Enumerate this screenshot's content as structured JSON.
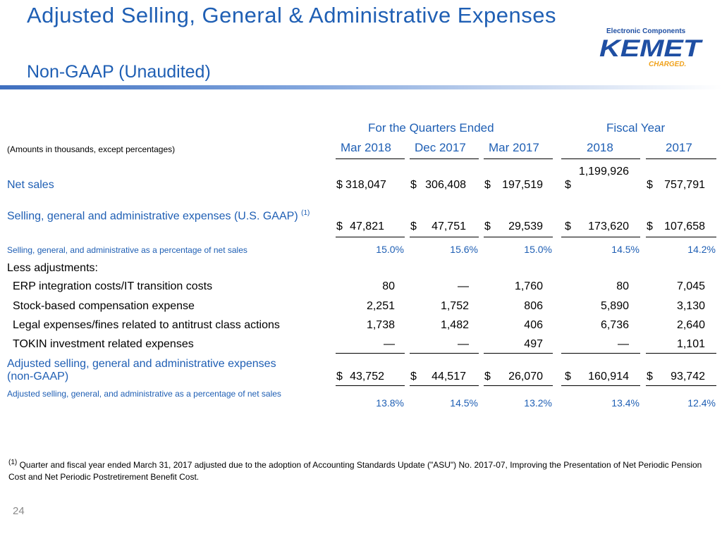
{
  "title": "Adjusted Selling, General & Administrative Expenses",
  "subtitle": "Non-GAAP (Unaudited)",
  "logo": {
    "tagline": "Electronic Components",
    "brand": "KEMET",
    "charged": "CHARGED.",
    "primary_color": "#1f4fa3",
    "accent_color": "#f0a21c"
  },
  "table": {
    "units_note": "(Amounts in thousands, except percentages)",
    "group_quarters": "For the Quarters Ended",
    "group_fiscal": "Fiscal Year",
    "columns": [
      "Mar 2018",
      "Dec 2017",
      "Mar 2017",
      "2018",
      "2017"
    ],
    "rows": {
      "net_sales": {
        "label": "Net sales",
        "cur": "$",
        "values": [
          "318,047",
          "306,408",
          "197,519",
          "1,199,926",
          "757,791"
        ]
      },
      "sga_gaap": {
        "label": "Selling, general and administrative expenses (U.S. GAAP)",
        "sup": "(1)",
        "cur": "$",
        "values": [
          "47,821",
          "47,751",
          "29,539",
          "173,620",
          "107,658"
        ]
      },
      "sga_pct": {
        "label": "Selling, general, and administrative as a percentage of net sales",
        "values": [
          "15.0%",
          "15.6%",
          "15.0%",
          "14.5%",
          "14.2%"
        ]
      },
      "less_adjustments": {
        "label": "Less adjustments:"
      },
      "erp": {
        "label": "ERP integration costs/IT transition costs",
        "values": [
          "80",
          "—",
          "1,760",
          "80",
          "7,045"
        ]
      },
      "stock": {
        "label": "Stock-based compensation expense",
        "values": [
          "2,251",
          "1,752",
          "806",
          "5,890",
          "3,130"
        ]
      },
      "legal": {
        "label": "Legal expenses/fines related to antitrust class actions",
        "values": [
          "1,738",
          "1,482",
          "406",
          "6,736",
          "2,640"
        ]
      },
      "tokin": {
        "label": "TOKIN investment related expenses",
        "values": [
          "—",
          "—",
          "497",
          "—",
          "1,101"
        ]
      },
      "adj_sga": {
        "label": "Adjusted selling, general and administrative expenses (non-GAAP)",
        "cur": "$",
        "values": [
          "43,752",
          "44,517",
          "26,070",
          "160,914",
          "93,742"
        ]
      },
      "adj_pct": {
        "label": "Adjusted selling, general, and administrative as a percentage of net sales",
        "values": [
          "13.8%",
          "14.5%",
          "13.2%",
          "13.4%",
          "12.4%"
        ]
      }
    }
  },
  "footnote": {
    "marker": "(1)",
    "text": "Quarter and fiscal year ended March 31, 2017 adjusted due to the adoption of Accounting Standards Update (\"ASU\") No. 2017-07, Improving the Presentation of Net Periodic Pension Cost and Net Periodic Postretirement Benefit Cost."
  },
  "page_number": "24"
}
